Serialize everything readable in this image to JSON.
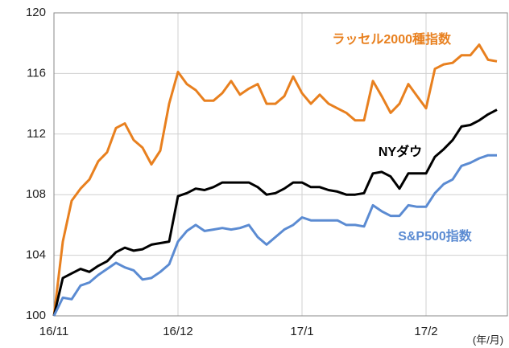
{
  "chart_data": {
    "type": "line",
    "categories": [
      "16/11",
      null,
      null,
      null,
      null,
      null,
      null,
      null,
      null,
      null,
      null,
      null,
      null,
      null,
      "16/12",
      null,
      null,
      null,
      null,
      null,
      null,
      null,
      null,
      null,
      null,
      null,
      null,
      null,
      "17/1",
      null,
      null,
      null,
      null,
      null,
      null,
      null,
      null,
      null,
      null,
      null,
      null,
      null,
      "17/2",
      null,
      null,
      null,
      null,
      null,
      null,
      null,
      null
    ],
    "x_label": "(年/月)",
    "ylim": [
      100,
      120
    ],
    "yticks": [
      100,
      104,
      108,
      112,
      116,
      120
    ],
    "grid": true,
    "series": [
      {
        "name": "ラッセル2000種指数",
        "color": "#e8801f",
        "values": [
          100,
          104.9,
          107.6,
          108.4,
          109.0,
          110.2,
          110.8,
          112.4,
          112.7,
          111.6,
          111.1,
          110.0,
          110.9,
          114.0,
          116.1,
          115.3,
          114.9,
          114.2,
          114.2,
          114.7,
          115.5,
          114.6,
          115.0,
          115.3,
          114.0,
          114.0,
          114.5,
          115.8,
          114.7,
          114.0,
          114.6,
          114.0,
          113.7,
          113.4,
          112.9,
          112.9,
          115.5,
          114.5,
          113.4,
          114.0,
          115.3,
          114.5,
          113.7,
          116.3,
          116.6,
          116.7,
          117.2,
          117.2,
          117.9,
          116.9,
          116.8
        ]
      },
      {
        "name": "NYダウ",
        "color": "#000000",
        "values": [
          100,
          102.5,
          102.8,
          103.1,
          102.9,
          103.3,
          103.6,
          104.2,
          104.5,
          104.3,
          104.4,
          104.7,
          104.8,
          104.9,
          107.9,
          108.1,
          108.4,
          108.3,
          108.5,
          108.8,
          108.8,
          108.8,
          108.8,
          108.5,
          108.0,
          108.1,
          108.4,
          108.8,
          108.8,
          108.5,
          108.5,
          108.3,
          108.2,
          108.0,
          108.0,
          108.1,
          109.4,
          109.5,
          109.2,
          108.4,
          109.4,
          109.4,
          109.4,
          110.5,
          111.0,
          111.6,
          112.5,
          112.6,
          112.9,
          113.3,
          113.6
        ]
      },
      {
        "name": "S&P500指数",
        "color": "#5b8bd2",
        "values": [
          100,
          101.2,
          101.1,
          102.0,
          102.2,
          102.7,
          103.1,
          103.5,
          103.2,
          103.0,
          102.4,
          102.5,
          102.9,
          103.4,
          104.9,
          105.6,
          106.0,
          105.6,
          105.7,
          105.8,
          105.7,
          105.8,
          106.0,
          105.2,
          104.7,
          105.2,
          105.7,
          106.0,
          106.5,
          106.3,
          106.3,
          106.3,
          106.3,
          106.0,
          106.0,
          105.9,
          107.3,
          106.9,
          106.6,
          106.6,
          107.3,
          107.2,
          107.2,
          108.1,
          108.7,
          109.0,
          109.9,
          110.1,
          110.4,
          110.6,
          110.6
        ]
      }
    ]
  }
}
